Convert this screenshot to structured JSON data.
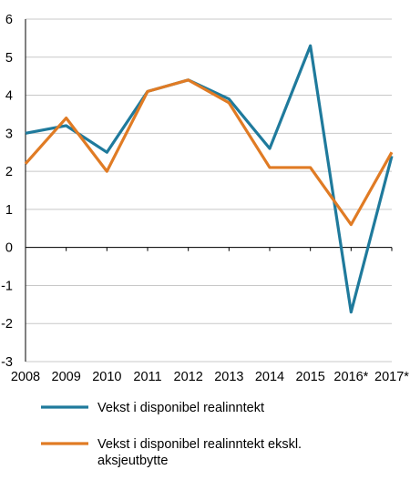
{
  "chart_data": {
    "type": "line",
    "title": "",
    "xlabel": "",
    "ylabel": "",
    "categories": [
      "2008",
      "2009",
      "2010",
      "2011",
      "2012",
      "2013",
      "2014",
      "2015",
      "2016*",
      "2017*"
    ],
    "ylim": [
      -3,
      6
    ],
    "yticks": [
      "6",
      "5",
      "4",
      "3",
      "2",
      "1",
      "0",
      "-1",
      "-2",
      "-3"
    ],
    "grid": true,
    "legend_position": "bottom",
    "series": [
      {
        "name": "Vekst i disponibel realinntekt",
        "color": "#1f7a9c",
        "values": [
          3.0,
          3.2,
          2.5,
          4.1,
          4.4,
          3.9,
          2.6,
          5.3,
          -1.7,
          2.4
        ]
      },
      {
        "name": "Vekst i disponibel realinntekt ekskl. aksjeutbytte",
        "name_lines": [
          "Vekst i disponibel realinntekt ekskl.",
          "aksjeutbytte"
        ],
        "color": "#e07b24",
        "values": [
          2.2,
          3.4,
          2.0,
          4.1,
          4.4,
          3.8,
          2.1,
          2.1,
          0.6,
          2.5
        ]
      }
    ]
  }
}
